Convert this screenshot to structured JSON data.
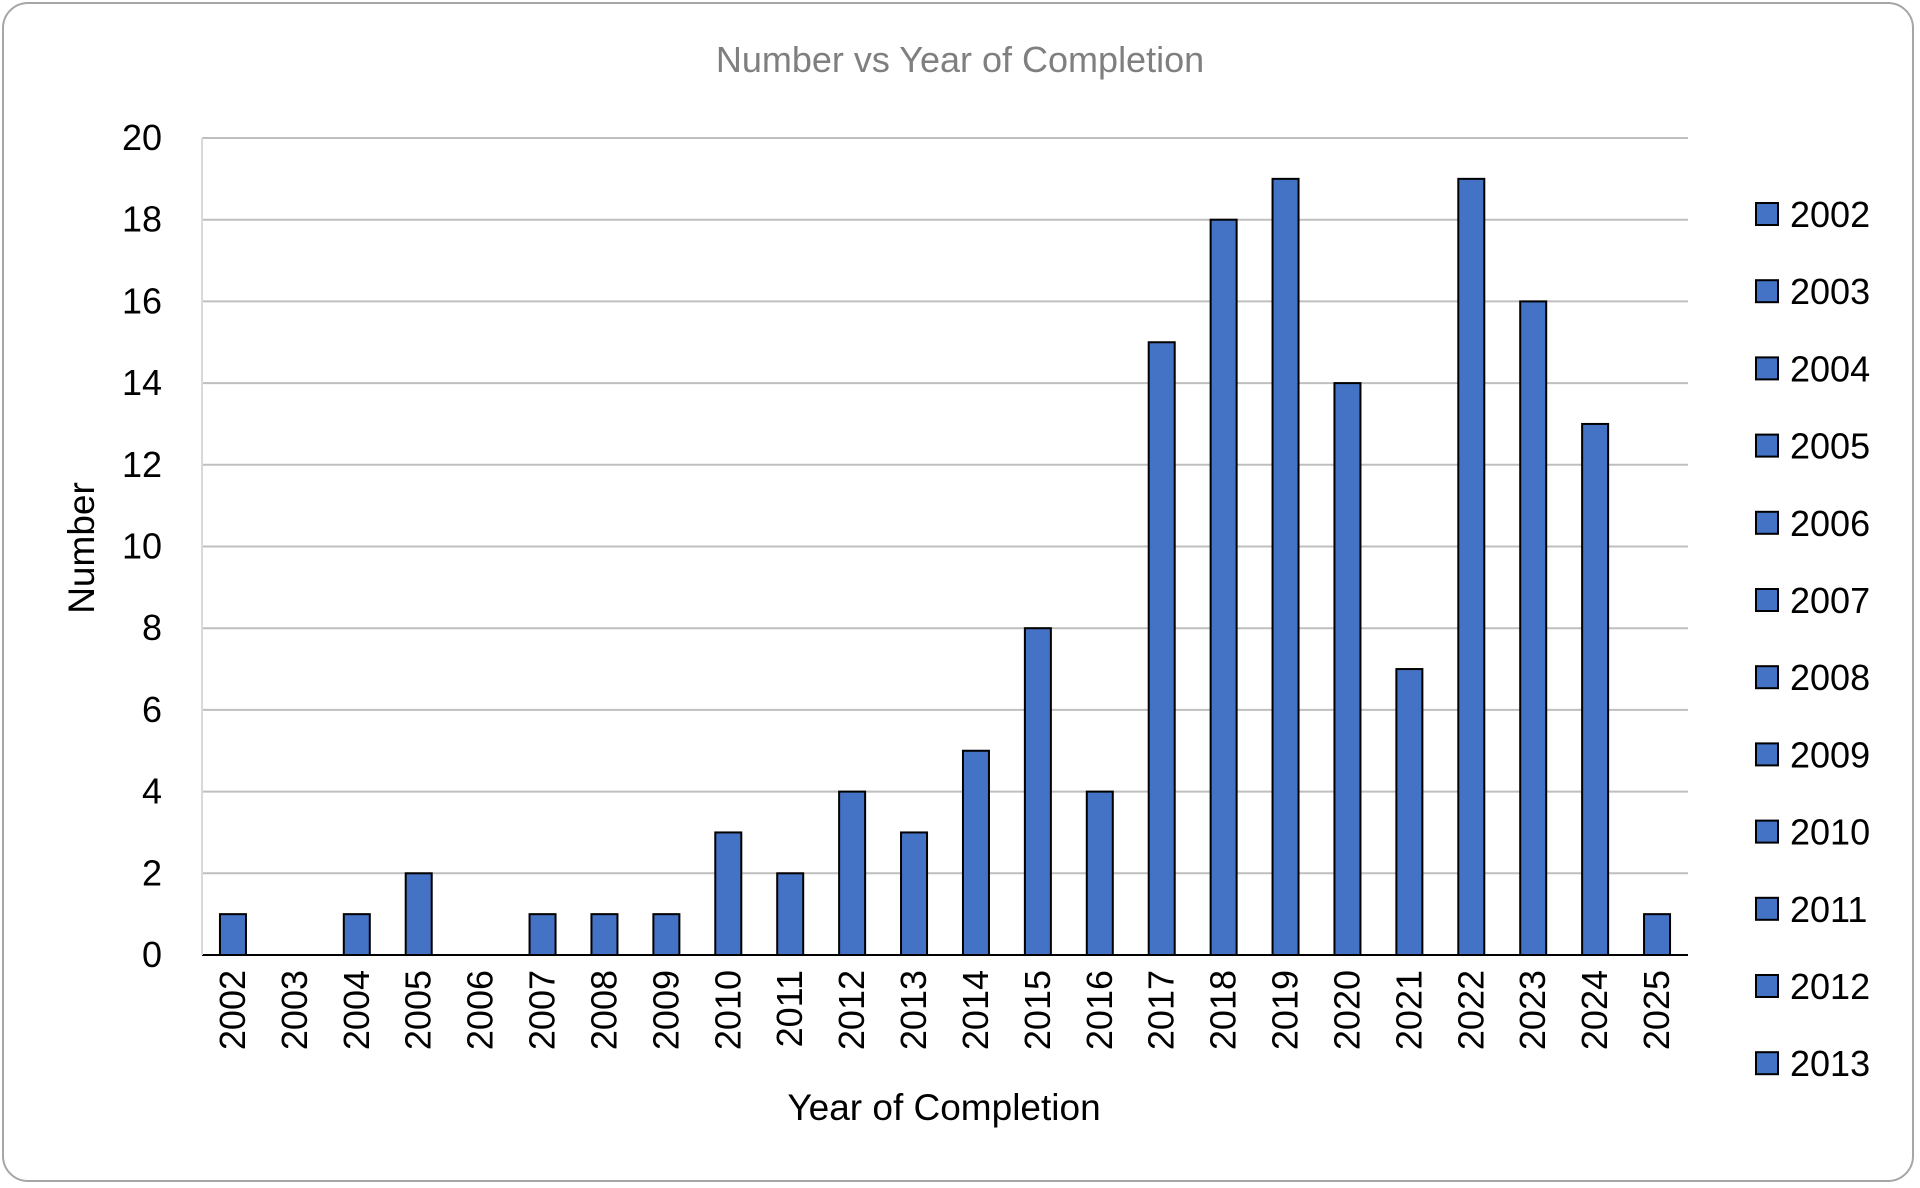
{
  "chart_data": {
    "type": "bar",
    "title": "Number vs Year of Completion",
    "xlabel": "Year of Completion",
    "ylabel": "Number",
    "ylim": [
      0,
      20
    ],
    "y_ticks": [
      0,
      2,
      4,
      6,
      8,
      10,
      12,
      14,
      16,
      18,
      20
    ],
    "grid": true,
    "legend_position": "right",
    "bar_color": "#4472c4",
    "bar_edge_color": "#000000",
    "categories": [
      "2002",
      "2003",
      "2004",
      "2005",
      "2006",
      "2007",
      "2008",
      "2009",
      "2010",
      "2011",
      "2012",
      "2013",
      "2014",
      "2015",
      "2016",
      "2017",
      "2018",
      "2019",
      "2020",
      "2021",
      "2022",
      "2023",
      "2024",
      "2025"
    ],
    "values": [
      1,
      0,
      1,
      2,
      0,
      1,
      1,
      1,
      3,
      2,
      4,
      3,
      5,
      8,
      4,
      15,
      18,
      19,
      14,
      7,
      19,
      16,
      13,
      1
    ],
    "legend_entries": [
      "2002",
      "2003",
      "2004",
      "2005",
      "2006",
      "2007",
      "2008",
      "2009",
      "2010",
      "2011",
      "2012",
      "2013"
    ]
  }
}
